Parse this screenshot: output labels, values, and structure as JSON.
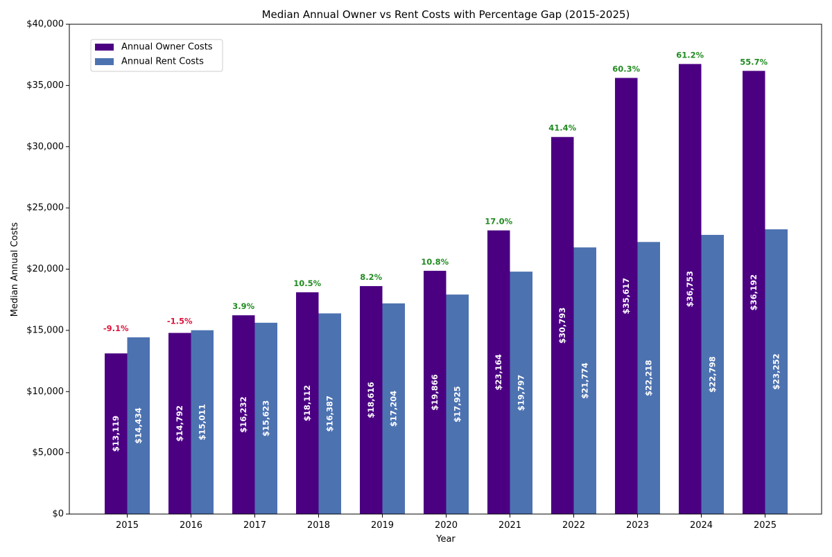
{
  "chart_data": {
    "type": "bar",
    "title": "Median Annual Owner vs Rent Costs with Percentage Gap (2015-2025)",
    "xlabel": "Year",
    "ylabel": "Median Annual Costs",
    "ylim": [
      0,
      40000
    ],
    "yticks": [
      0,
      5000,
      10000,
      15000,
      20000,
      25000,
      30000,
      35000,
      40000
    ],
    "ytick_labels": [
      "$0",
      "$5,000",
      "$10,000",
      "$15,000",
      "$20,000",
      "$25,000",
      "$30,000",
      "$35,000",
      "$40,000"
    ],
    "categories": [
      "2015",
      "2016",
      "2017",
      "2018",
      "2019",
      "2020",
      "2021",
      "2022",
      "2023",
      "2024",
      "2025"
    ],
    "series": [
      {
        "name": "Annual Owner Costs",
        "color": "#4b0082",
        "values": [
          13119,
          14792,
          16232,
          18112,
          18616,
          19866,
          23164,
          30793,
          35617,
          36753,
          36192
        ],
        "value_labels": [
          "$13,119",
          "$14,792",
          "$16,232",
          "$18,112",
          "$18,616",
          "$19,866",
          "$23,164",
          "$30,793",
          "$35,617",
          "$36,753",
          "$36,192"
        ]
      },
      {
        "name": "Annual Rent Costs",
        "color": "#4c72b0",
        "values": [
          14434,
          15011,
          15623,
          16387,
          17204,
          17925,
          19797,
          21774,
          22218,
          22798,
          23252
        ],
        "value_labels": [
          "$14,434",
          "$15,011",
          "$15,623",
          "$16,387",
          "$17,204",
          "$17,925",
          "$19,797",
          "$21,774",
          "$22,218",
          "$22,798",
          "$23,252"
        ]
      }
    ],
    "gap_labels": [
      "-9.1%",
      "-1.5%",
      "3.9%",
      "10.5%",
      "8.2%",
      "10.8%",
      "17.0%",
      "41.4%",
      "60.3%",
      "61.2%",
      "55.7%"
    ],
    "gap_colors": {
      "positive": "#228b22",
      "negative": "#dc143c"
    },
    "legend_position": "top-left",
    "grid": false
  }
}
